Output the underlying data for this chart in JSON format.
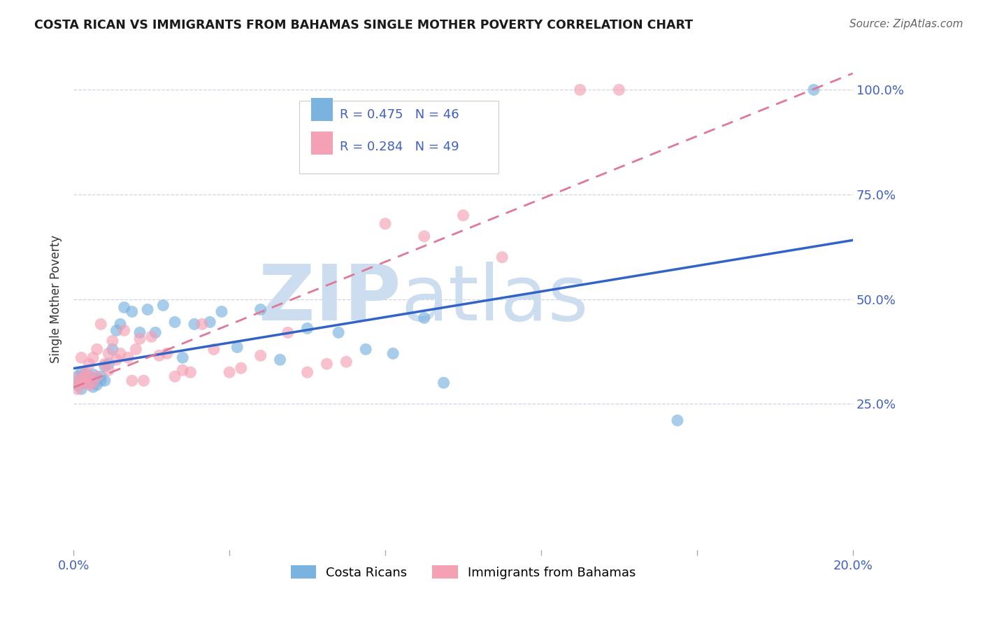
{
  "title": "COSTA RICAN VS IMMIGRANTS FROM BAHAMAS SINGLE MOTHER POVERTY CORRELATION CHART",
  "source": "Source: ZipAtlas.com",
  "ylabel": "Single Mother Poverty",
  "blue_label": "Costa Ricans",
  "pink_label": "Immigrants from Bahamas",
  "blue_R": 0.475,
  "blue_N": 46,
  "pink_R": 0.284,
  "pink_N": 49,
  "blue_color": "#7ab3e0",
  "pink_color": "#f4a0b5",
  "blue_line_color": "#3264c8",
  "pink_line_color": "#e07898",
  "watermark_zip": "ZIP",
  "watermark_atlas": "atlas",
  "watermark_color": "#ccddf0",
  "background_color": "#ffffff",
  "xlim": [
    0.0,
    0.2
  ],
  "ylim": [
    -0.1,
    1.1
  ],
  "blue_x": [
    0.001,
    0.001,
    0.002,
    0.002,
    0.002,
    0.003,
    0.003,
    0.003,
    0.004,
    0.004,
    0.004,
    0.005,
    0.005,
    0.005,
    0.006,
    0.006,
    0.007,
    0.007,
    0.008,
    0.008,
    0.009,
    0.01,
    0.011,
    0.012,
    0.013,
    0.015,
    0.017,
    0.019,
    0.021,
    0.023,
    0.026,
    0.028,
    0.031,
    0.035,
    0.038,
    0.042,
    0.048,
    0.053,
    0.06,
    0.068,
    0.075,
    0.082,
    0.09,
    0.095,
    0.155,
    0.19
  ],
  "blue_y": [
    0.315,
    0.295,
    0.31,
    0.285,
    0.325,
    0.3,
    0.32,
    0.31,
    0.315,
    0.305,
    0.31,
    0.32,
    0.3,
    0.29,
    0.31,
    0.295,
    0.315,
    0.305,
    0.305,
    0.34,
    0.345,
    0.38,
    0.425,
    0.44,
    0.48,
    0.47,
    0.42,
    0.475,
    0.42,
    0.485,
    0.445,
    0.36,
    0.44,
    0.445,
    0.47,
    0.385,
    0.475,
    0.355,
    0.43,
    0.42,
    0.38,
    0.37,
    0.455,
    0.3,
    0.21,
    1.0
  ],
  "pink_x": [
    0.001,
    0.001,
    0.001,
    0.002,
    0.002,
    0.003,
    0.003,
    0.003,
    0.004,
    0.004,
    0.004,
    0.005,
    0.005,
    0.006,
    0.006,
    0.007,
    0.008,
    0.009,
    0.009,
    0.01,
    0.011,
    0.012,
    0.013,
    0.014,
    0.015,
    0.016,
    0.017,
    0.018,
    0.02,
    0.022,
    0.024,
    0.026,
    0.028,
    0.03,
    0.033,
    0.036,
    0.04,
    0.043,
    0.048,
    0.055,
    0.06,
    0.065,
    0.07,
    0.08,
    0.09,
    0.1,
    0.11,
    0.13,
    0.14
  ],
  "pink_y": [
    0.31,
    0.295,
    0.285,
    0.36,
    0.305,
    0.315,
    0.3,
    0.325,
    0.315,
    0.295,
    0.345,
    0.3,
    0.36,
    0.315,
    0.38,
    0.44,
    0.345,
    0.33,
    0.37,
    0.4,
    0.355,
    0.37,
    0.425,
    0.36,
    0.305,
    0.38,
    0.405,
    0.305,
    0.41,
    0.365,
    0.37,
    0.315,
    0.33,
    0.325,
    0.44,
    0.38,
    0.325,
    0.335,
    0.365,
    0.42,
    0.325,
    0.345,
    0.35,
    0.68,
    0.65,
    0.7,
    0.6,
    1.0,
    1.0
  ],
  "grid_color": "#c8d0e0",
  "tick_color": "#4060c0",
  "title_color": "#1a1a1a",
  "source_color": "#666666"
}
